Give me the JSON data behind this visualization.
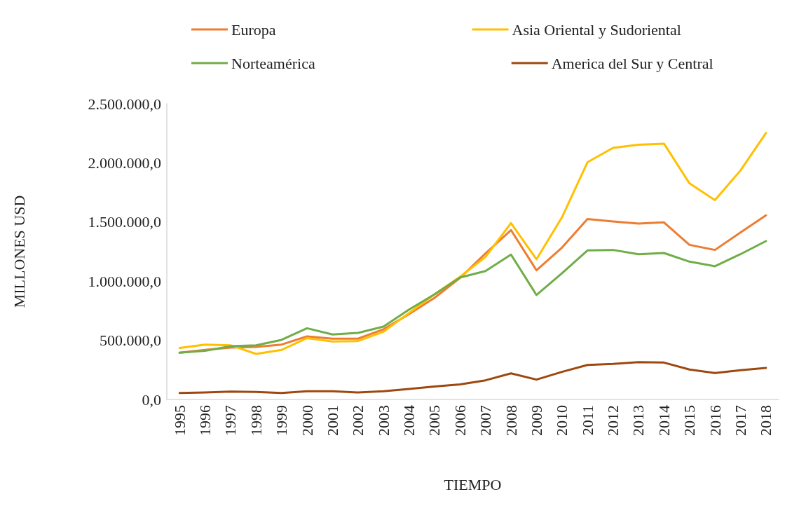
{
  "chart_data": {
    "type": "line",
    "xlabel": "TIEMPO",
    "ylabel": "MILLONES USD",
    "categories": [
      "1995",
      "1996",
      "1997",
      "1998",
      "1999",
      "2000",
      "2001",
      "2002",
      "2003",
      "2004",
      "2005",
      "2006",
      "2007",
      "2008",
      "2009",
      "2010",
      "2011",
      "2012",
      "2013",
      "2014",
      "2015",
      "2016",
      "2017",
      "2018"
    ],
    "series": [
      {
        "name": "Europa",
        "color": "#ed7d31",
        "values": [
          395000,
          419000,
          438000,
          444000,
          464000,
          533000,
          514000,
          514000,
          593000,
          721000,
          859000,
          1027000,
          1234000,
          1432000,
          1092000,
          1284000,
          1525000,
          1505000,
          1487000,
          1497000,
          1307000,
          1264000,
          1412000,
          1556000
        ]
      },
      {
        "name": "Asia Oriental y Sudoriental",
        "color": "#ffc000",
        "values": [
          435000,
          464000,
          458000,
          385000,
          419000,
          519000,
          490000,
          494000,
          573000,
          731000,
          889000,
          1037000,
          1205000,
          1491000,
          1185000,
          1540000,
          2005000,
          2127000,
          2153000,
          2163000,
          1827000,
          1685000,
          1935000,
          2252000
        ]
      },
      {
        "name": "Norteamérica",
        "color": "#70ad47",
        "values": [
          395000,
          411000,
          450000,
          458000,
          504000,
          602000,
          549000,
          563000,
          616000,
          760000,
          889000,
          1031000,
          1086000,
          1225000,
          883000,
          1067000,
          1260000,
          1264000,
          1228000,
          1238000,
          1165000,
          1126000,
          1228000,
          1339000
        ]
      },
      {
        "name": "America del Sur y Central",
        "color": "#9e480e",
        "values": [
          55000,
          59000,
          67000,
          63000,
          55000,
          69000,
          69000,
          59000,
          69000,
          89000,
          109000,
          128000,
          162000,
          221000,
          168000,
          233000,
          292000,
          300000,
          316000,
          312000,
          253000,
          223000,
          247000,
          267000
        ]
      }
    ],
    "ylim": [
      0,
      2500000
    ],
    "yticks": [
      {
        "value": 0,
        "label": "0,0"
      },
      {
        "value": 500000,
        "label": "500.000,0"
      },
      {
        "value": 1000000,
        "label": "1.000.000,0"
      },
      {
        "value": 1500000,
        "label": "1.500.000,0"
      },
      {
        "value": 2000000,
        "label": "2.000.000,0"
      },
      {
        "value": 2500000,
        "label": "2.500.000,0"
      }
    ],
    "grid": false,
    "legend": "top",
    "marker": "none",
    "line_style": "solid"
  }
}
